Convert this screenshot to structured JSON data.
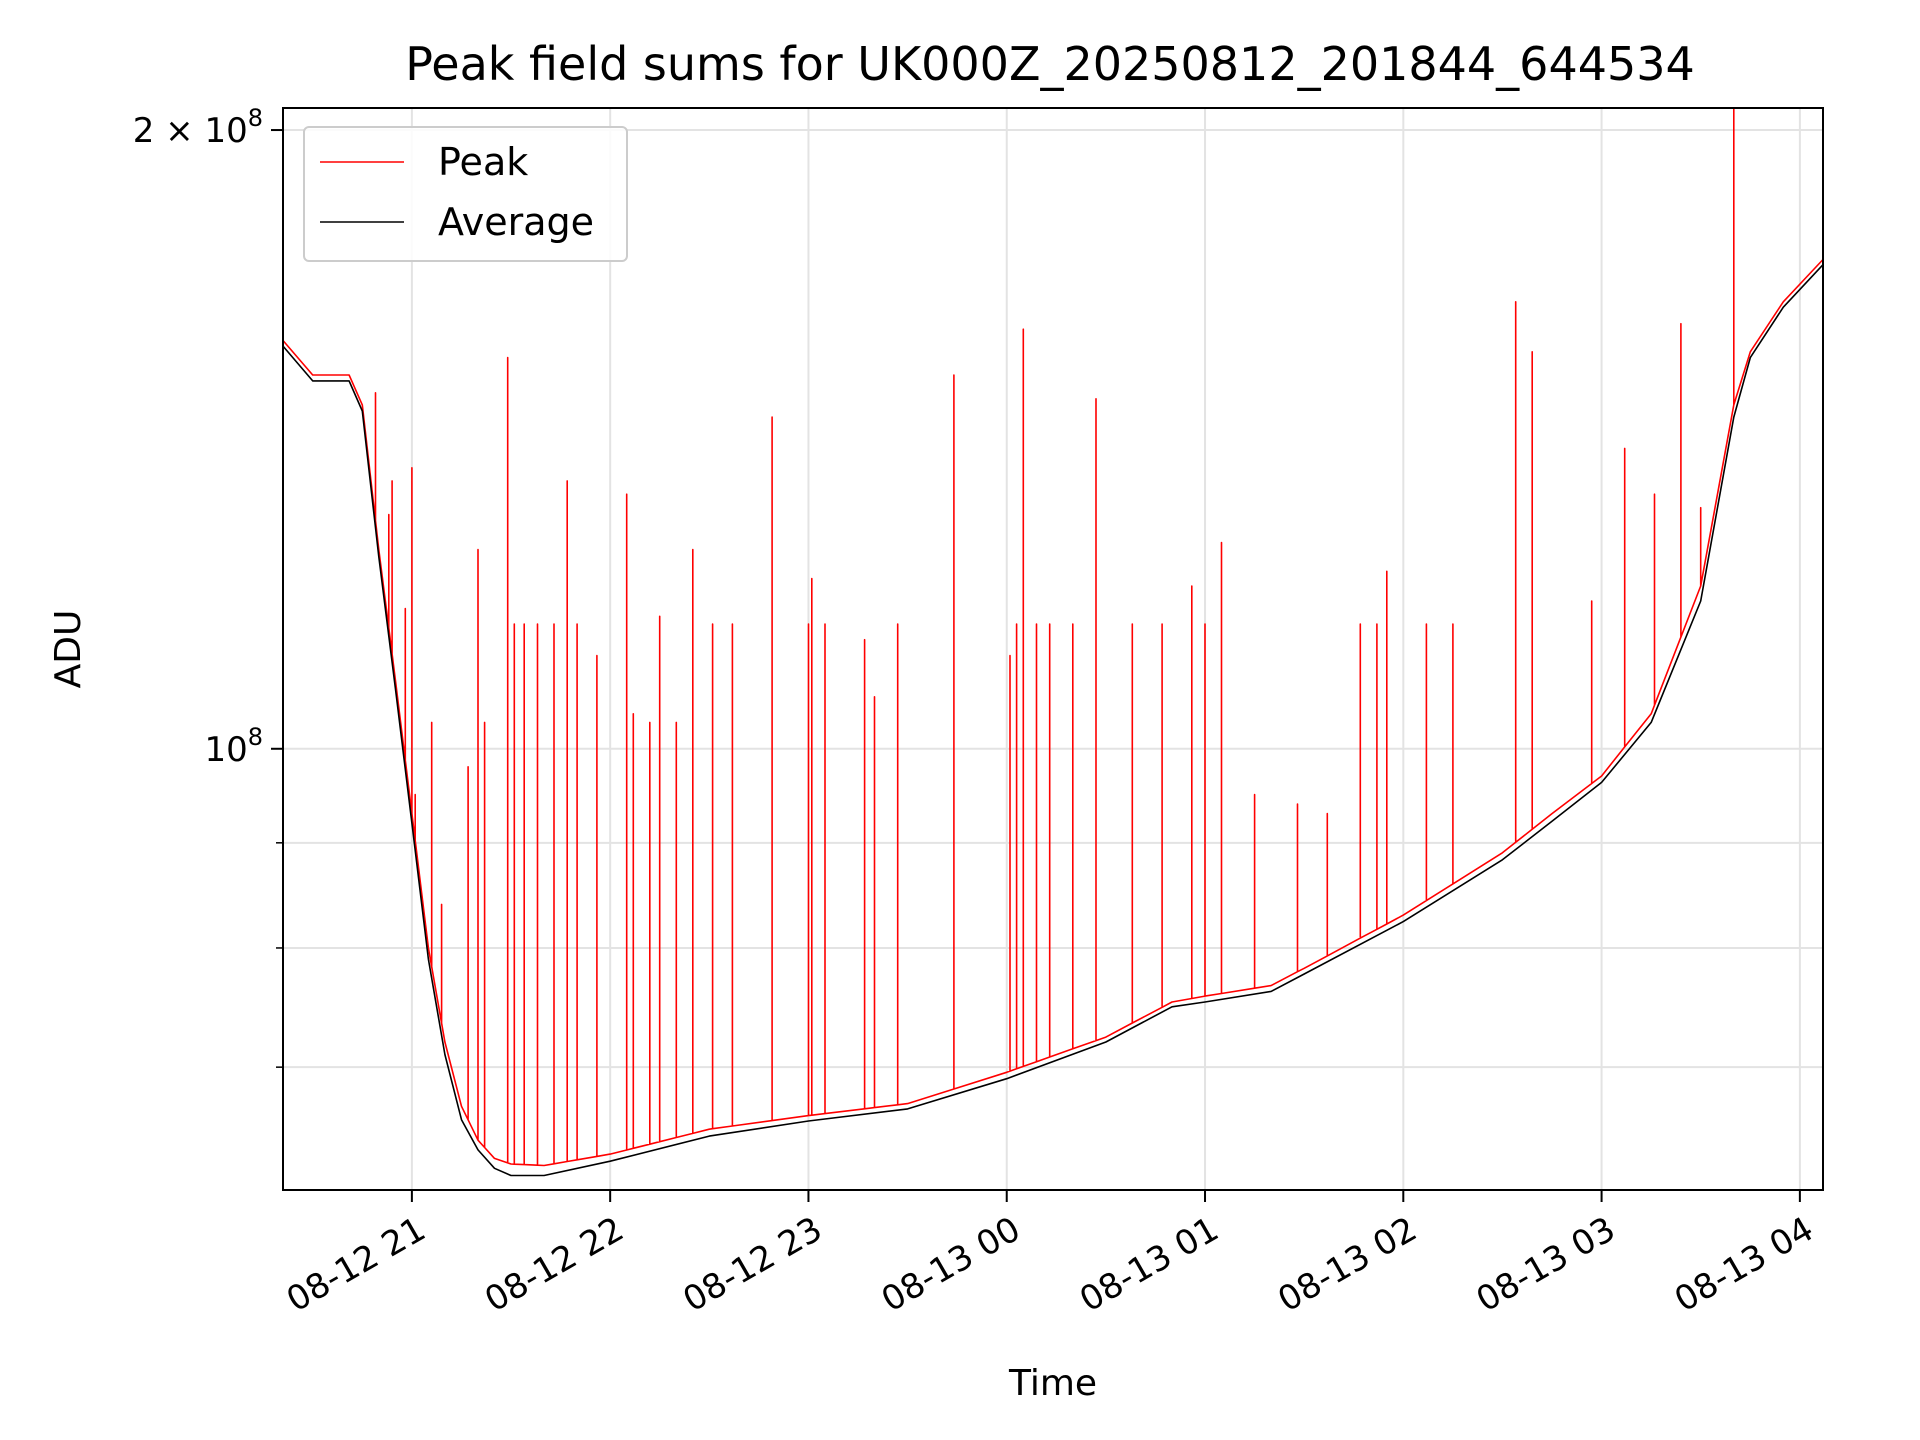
{
  "chart_data": {
    "type": "line",
    "title": "Peak field sums for UK000Z_20250812_201844_644534",
    "xlabel": "Time",
    "ylabel": "ADU",
    "y_scale": "log",
    "grid": true,
    "legend_position": "top-left",
    "xlim": [
      "2025-08-12 20:21",
      "2025-08-13 04:07"
    ],
    "ylim": [
      61000000,
      205000000
    ],
    "x_ticks": [
      "08-12 21",
      "08-12 22",
      "08-12 23",
      "08-13 00",
      "08-13 01",
      "08-13 02",
      "08-13 03",
      "08-13 04"
    ],
    "y_major_ticks": [
      {
        "value": 100000000,
        "label_base": "10",
        "label_exp": "8"
      },
      {
        "value": 200000000,
        "label_prefix": "2 × 10",
        "label_exp": "8"
      }
    ],
    "y_minor_ticks": [
      70000000,
      80000000,
      90000000
    ],
    "series": [
      {
        "name": "Peak",
        "color": "#ff0000",
        "baseline": [
          [
            "2025-08-12 20:21",
            158000000
          ],
          [
            "2025-08-12 20:30",
            152000000
          ],
          [
            "2025-08-12 20:41",
            152000000
          ],
          [
            "2025-08-12 20:45",
            147000000
          ],
          [
            "2025-08-12 20:50",
            125000000
          ],
          [
            "2025-08-12 20:55",
            108000000
          ],
          [
            "2025-08-12 21:00",
            93000000
          ],
          [
            "2025-08-12 21:05",
            80000000
          ],
          [
            "2025-08-12 21:10",
            72000000
          ],
          [
            "2025-08-12 21:15",
            67000000
          ],
          [
            "2025-08-12 21:20",
            64500000
          ],
          [
            "2025-08-12 21:25",
            63200000
          ],
          [
            "2025-08-12 21:30",
            62800000
          ],
          [
            "2025-08-12 21:40",
            62700000
          ],
          [
            "2025-08-12 22:00",
            63500000
          ],
          [
            "2025-08-12 22:30",
            65300000
          ],
          [
            "2025-08-12 23:00",
            66300000
          ],
          [
            "2025-08-12 23:30",
            67200000
          ],
          [
            "2025-08-13 00:00",
            69600000
          ],
          [
            "2025-08-13 00:30",
            72400000
          ],
          [
            "2025-08-13 00:50",
            75300000
          ],
          [
            "2025-08-13 01:00",
            75800000
          ],
          [
            "2025-08-13 01:20",
            76700000
          ],
          [
            "2025-08-13 01:30",
            78200000
          ],
          [
            "2025-08-13 02:00",
            83000000
          ],
          [
            "2025-08-13 02:30",
            89000000
          ],
          [
            "2025-08-13 02:45",
            93000000
          ],
          [
            "2025-08-13 03:00",
            97000000
          ],
          [
            "2025-08-13 03:15",
            104000000
          ],
          [
            "2025-08-13 03:30",
            120000000
          ],
          [
            "2025-08-13 03:40",
            147000000
          ],
          [
            "2025-08-13 03:45",
            156000000
          ],
          [
            "2025-08-13 03:55",
            165000000
          ],
          [
            "2025-08-13 04:07",
            173000000
          ]
        ],
        "spikes": [
          [
            "2025-08-12 20:49",
            149000000
          ],
          [
            "2025-08-12 20:53",
            130000000
          ],
          [
            "2025-08-12 20:54",
            135000000
          ],
          [
            "2025-08-12 20:58",
            117000000
          ],
          [
            "2025-08-12 21:00",
            137000000
          ],
          [
            "2025-08-12 21:01",
            95000000
          ],
          [
            "2025-08-12 21:06",
            103000000
          ],
          [
            "2025-08-12 21:09",
            84000000
          ],
          [
            "2025-08-12 21:17",
            98000000
          ],
          [
            "2025-08-12 21:20",
            125000000
          ],
          [
            "2025-08-12 21:22",
            103000000
          ],
          [
            "2025-08-12 21:29",
            155000000
          ],
          [
            "2025-08-12 21:31",
            115000000
          ],
          [
            "2025-08-12 21:34",
            115000000
          ],
          [
            "2025-08-12 21:38",
            115000000
          ],
          [
            "2025-08-12 21:43",
            115000000
          ],
          [
            "2025-08-12 21:47",
            135000000
          ],
          [
            "2025-08-12 21:50",
            115000000
          ],
          [
            "2025-08-12 21:56",
            111000000
          ],
          [
            "2025-08-12 22:05",
            133000000
          ],
          [
            "2025-08-12 22:07",
            104000000
          ],
          [
            "2025-08-12 22:12",
            103000000
          ],
          [
            "2025-08-12 22:15",
            116000000
          ],
          [
            "2025-08-12 22:20",
            103000000
          ],
          [
            "2025-08-12 22:25",
            125000000
          ],
          [
            "2025-08-12 22:31",
            115000000
          ],
          [
            "2025-08-12 22:37",
            115000000
          ],
          [
            "2025-08-12 22:49",
            145000000
          ],
          [
            "2025-08-12 23:00",
            115000000
          ],
          [
            "2025-08-12 23:01",
            121000000
          ],
          [
            "2025-08-12 23:05",
            115000000
          ],
          [
            "2025-08-12 23:17",
            113000000
          ],
          [
            "2025-08-12 23:20",
            106000000
          ],
          [
            "2025-08-12 23:27",
            115000000
          ],
          [
            "2025-08-12 23:44",
            152000000
          ],
          [
            "2025-08-13 00:01",
            111000000
          ],
          [
            "2025-08-13 00:03",
            115000000
          ],
          [
            "2025-08-13 00:05",
            160000000
          ],
          [
            "2025-08-13 00:09",
            115000000
          ],
          [
            "2025-08-13 00:13",
            115000000
          ],
          [
            "2025-08-13 00:20",
            115000000
          ],
          [
            "2025-08-13 00:27",
            148000000
          ],
          [
            "2025-08-13 00:38",
            115000000
          ],
          [
            "2025-08-13 00:47",
            115000000
          ],
          [
            "2025-08-13 00:56",
            120000000
          ],
          [
            "2025-08-13 01:00",
            115000000
          ],
          [
            "2025-08-13 01:05",
            126000000
          ],
          [
            "2025-08-13 01:15",
            95000000
          ],
          [
            "2025-08-13 01:28",
            94000000
          ],
          [
            "2025-08-13 01:37",
            93000000
          ],
          [
            "2025-08-13 01:47",
            115000000
          ],
          [
            "2025-08-13 01:52",
            115000000
          ],
          [
            "2025-08-13 01:55",
            122000000
          ],
          [
            "2025-08-13 02:07",
            115000000
          ],
          [
            "2025-08-13 02:15",
            115000000
          ],
          [
            "2025-08-13 02:34",
            165000000
          ],
          [
            "2025-08-13 02:39",
            156000000
          ],
          [
            "2025-08-13 02:57",
            118000000
          ],
          [
            "2025-08-13 03:07",
            140000000
          ],
          [
            "2025-08-13 03:16",
            133000000
          ],
          [
            "2025-08-13 03:24",
            161000000
          ],
          [
            "2025-08-13 03:30",
            131000000
          ],
          [
            "2025-08-13 03:40",
            205000000
          ]
        ]
      },
      {
        "name": "Average",
        "color": "#000000",
        "baseline": [
          [
            "2025-08-12 20:21",
            157000000
          ],
          [
            "2025-08-12 20:30",
            151000000
          ],
          [
            "2025-08-12 20:41",
            151000000
          ],
          [
            "2025-08-12 20:45",
            146000000
          ],
          [
            "2025-08-12 20:50",
            124000000
          ],
          [
            "2025-08-12 20:55",
            107000000
          ],
          [
            "2025-08-12 21:00",
            92000000
          ],
          [
            "2025-08-12 21:05",
            79000000
          ],
          [
            "2025-08-12 21:10",
            71000000
          ],
          [
            "2025-08-12 21:15",
            66000000
          ],
          [
            "2025-08-12 21:20",
            63800000
          ],
          [
            "2025-08-12 21:25",
            62500000
          ],
          [
            "2025-08-12 21:30",
            62000000
          ],
          [
            "2025-08-12 21:40",
            62000000
          ],
          [
            "2025-08-12 22:00",
            63000000
          ],
          [
            "2025-08-12 22:30",
            64800000
          ],
          [
            "2025-08-12 23:00",
            65900000
          ],
          [
            "2025-08-12 23:30",
            66800000
          ],
          [
            "2025-08-13 00:00",
            69100000
          ],
          [
            "2025-08-13 00:30",
            72000000
          ],
          [
            "2025-08-13 00:50",
            74900000
          ],
          [
            "2025-08-13 01:00",
            75300000
          ],
          [
            "2025-08-13 01:20",
            76200000
          ],
          [
            "2025-08-13 01:30",
            77700000
          ],
          [
            "2025-08-13 02:00",
            82400000
          ],
          [
            "2025-08-13 02:30",
            88300000
          ],
          [
            "2025-08-13 02:45",
            92200000
          ],
          [
            "2025-08-13 03:00",
            96300000
          ],
          [
            "2025-08-13 03:15",
            103000000
          ],
          [
            "2025-08-13 03:30",
            118000000
          ],
          [
            "2025-08-13 03:40",
            145000000
          ],
          [
            "2025-08-13 03:45",
            155000000
          ],
          [
            "2025-08-13 03:55",
            164000000
          ],
          [
            "2025-08-13 04:07",
            172000000
          ]
        ]
      }
    ]
  }
}
